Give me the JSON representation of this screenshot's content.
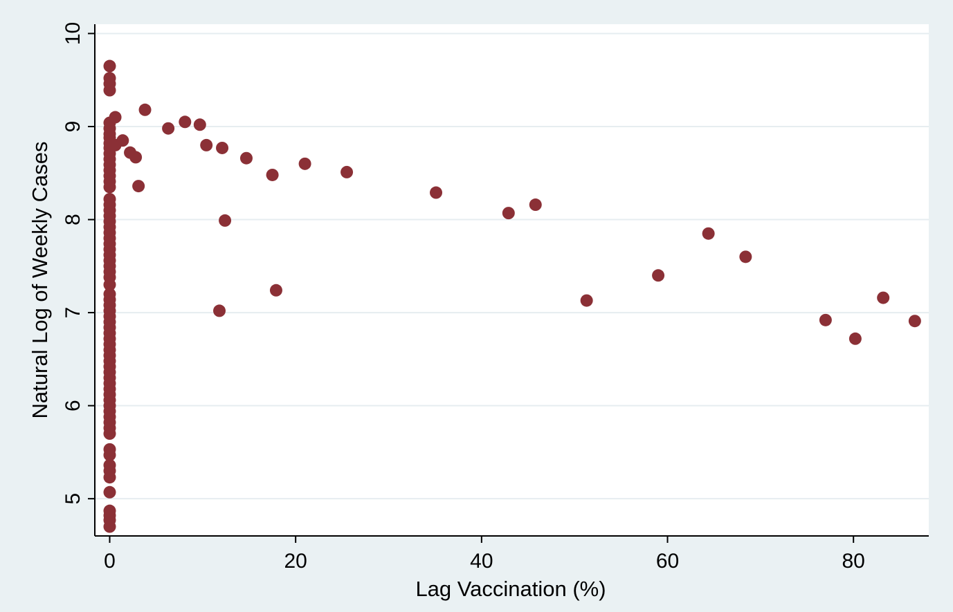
{
  "chart_data": {
    "type": "scatter",
    "xlabel": "Lag Vaccination (%)",
    "ylabel": "Natural Log of Weekly Cases",
    "xlim": [
      -1.6,
      88.1
    ],
    "ylim": [
      4.6,
      10.1
    ],
    "x_ticks": [
      0,
      20,
      40,
      60,
      80
    ],
    "y_ticks": [
      5,
      6,
      7,
      8,
      9,
      10
    ],
    "grid": "horizontal",
    "legend": "none",
    "marker_color": "#8b3036",
    "background_color": "#eaf1f3",
    "plot_background": "#ffffff",
    "points": [
      {
        "x": 0,
        "y": 9.65
      },
      {
        "x": 0,
        "y": 9.52
      },
      {
        "x": 0,
        "y": 9.46
      },
      {
        "x": 0,
        "y": 9.39
      },
      {
        "x": 0,
        "y": 9.04
      },
      {
        "x": 0,
        "y": 8.98
      },
      {
        "x": 0,
        "y": 8.92
      },
      {
        "x": 0,
        "y": 8.88
      },
      {
        "x": 0,
        "y": 8.82
      },
      {
        "x": 0,
        "y": 8.77
      },
      {
        "x": 0,
        "y": 8.71
      },
      {
        "x": 0,
        "y": 8.65
      },
      {
        "x": 0,
        "y": 8.59
      },
      {
        "x": 0,
        "y": 8.53
      },
      {
        "x": 0,
        "y": 8.47
      },
      {
        "x": 0,
        "y": 8.41
      },
      {
        "x": 0,
        "y": 8.35
      },
      {
        "x": 0,
        "y": 8.22
      },
      {
        "x": 0,
        "y": 8.16
      },
      {
        "x": 0,
        "y": 8.1
      },
      {
        "x": 0,
        "y": 8.04
      },
      {
        "x": 0,
        "y": 7.98
      },
      {
        "x": 0,
        "y": 7.92
      },
      {
        "x": 0,
        "y": 7.86
      },
      {
        "x": 0,
        "y": 7.8
      },
      {
        "x": 0,
        "y": 7.74
      },
      {
        "x": 0,
        "y": 7.68
      },
      {
        "x": 0,
        "y": 7.62
      },
      {
        "x": 0,
        "y": 7.56
      },
      {
        "x": 0,
        "y": 7.5
      },
      {
        "x": 0,
        "y": 7.44
      },
      {
        "x": 0,
        "y": 7.38
      },
      {
        "x": 0,
        "y": 7.3
      },
      {
        "x": 0,
        "y": 7.2
      },
      {
        "x": 0,
        "y": 7.14
      },
      {
        "x": 0,
        "y": 7.08
      },
      {
        "x": 0,
        "y": 7.02
      },
      {
        "x": 0,
        "y": 6.96
      },
      {
        "x": 0,
        "y": 6.9
      },
      {
        "x": 0,
        "y": 6.84
      },
      {
        "x": 0,
        "y": 6.78
      },
      {
        "x": 0,
        "y": 6.72
      },
      {
        "x": 0,
        "y": 6.66
      },
      {
        "x": 0,
        "y": 6.6
      },
      {
        "x": 0,
        "y": 6.54
      },
      {
        "x": 0,
        "y": 6.48
      },
      {
        "x": 0,
        "y": 6.42
      },
      {
        "x": 0,
        "y": 6.36
      },
      {
        "x": 0,
        "y": 6.3
      },
      {
        "x": 0,
        "y": 6.24
      },
      {
        "x": 0,
        "y": 6.18
      },
      {
        "x": 0,
        "y": 6.12
      },
      {
        "x": 0,
        "y": 6.06
      },
      {
        "x": 0,
        "y": 6.0
      },
      {
        "x": 0,
        "y": 5.94
      },
      {
        "x": 0,
        "y": 5.88
      },
      {
        "x": 0,
        "y": 5.82
      },
      {
        "x": 0,
        "y": 5.76
      },
      {
        "x": 0,
        "y": 5.7
      },
      {
        "x": 0,
        "y": 5.53
      },
      {
        "x": 0,
        "y": 5.47
      },
      {
        "x": 0,
        "y": 5.36
      },
      {
        "x": 0,
        "y": 5.3
      },
      {
        "x": 0,
        "y": 5.23
      },
      {
        "x": 0,
        "y": 5.07
      },
      {
        "x": 0,
        "y": 4.87
      },
      {
        "x": 0,
        "y": 4.82
      },
      {
        "x": 0,
        "y": 4.77
      },
      {
        "x": 0,
        "y": 4.7
      },
      {
        "x": 0.6,
        "y": 9.1
      },
      {
        "x": 0.6,
        "y": 8.8
      },
      {
        "x": 1.4,
        "y": 8.85
      },
      {
        "x": 2.2,
        "y": 8.72
      },
      {
        "x": 2.8,
        "y": 8.67
      },
      {
        "x": 3.1,
        "y": 8.36
      },
      {
        "x": 3.8,
        "y": 9.18
      },
      {
        "x": 6.3,
        "y": 8.98
      },
      {
        "x": 8.1,
        "y": 9.05
      },
      {
        "x": 9.7,
        "y": 9.02
      },
      {
        "x": 10.4,
        "y": 8.8
      },
      {
        "x": 11.8,
        "y": 7.02
      },
      {
        "x": 12.1,
        "y": 8.77
      },
      {
        "x": 12.4,
        "y": 7.99
      },
      {
        "x": 14.7,
        "y": 8.66
      },
      {
        "x": 17.5,
        "y": 8.48
      },
      {
        "x": 17.9,
        "y": 7.24
      },
      {
        "x": 21.0,
        "y": 8.6
      },
      {
        "x": 25.5,
        "y": 8.51
      },
      {
        "x": 35.1,
        "y": 8.29
      },
      {
        "x": 42.9,
        "y": 8.07
      },
      {
        "x": 45.8,
        "y": 8.16
      },
      {
        "x": 51.3,
        "y": 7.13
      },
      {
        "x": 59.0,
        "y": 7.4
      },
      {
        "x": 64.4,
        "y": 7.85
      },
      {
        "x": 68.4,
        "y": 7.6
      },
      {
        "x": 77.0,
        "y": 6.92
      },
      {
        "x": 80.2,
        "y": 6.72
      },
      {
        "x": 83.2,
        "y": 7.16
      },
      {
        "x": 86.6,
        "y": 6.91
      }
    ]
  }
}
